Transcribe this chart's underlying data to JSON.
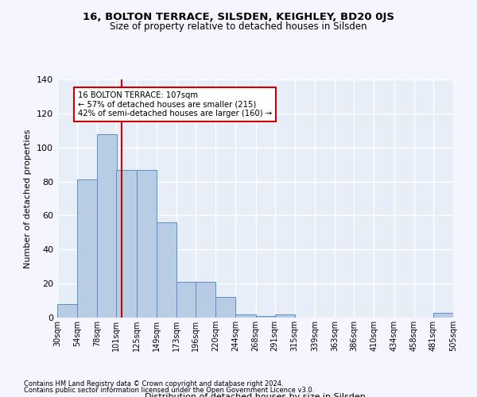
{
  "title": "16, BOLTON TERRACE, SILSDEN, KEIGHLEY, BD20 0JS",
  "subtitle": "Size of property relative to detached houses in Silsden",
  "xlabel": "Distribution of detached houses by size in Silsden",
  "ylabel": "Number of detached properties",
  "bar_color": "#b8cce4",
  "bar_edge_color": "#5b8dc8",
  "background_color": "#e8eef8",
  "grid_color": "#ffffff",
  "vline_x": 107,
  "vline_color": "#cc0000",
  "annotation_text": "16 BOLTON TERRACE: 107sqm\n← 57% of detached houses are smaller (215)\n42% of semi-detached houses are larger (160) →",
  "annotation_box_color": "#ffffff",
  "annotation_border_color": "#cc0000",
  "bins": [
    30,
    54,
    78,
    101,
    125,
    149,
    173,
    196,
    220,
    244,
    268,
    291,
    315,
    339,
    363,
    386,
    410,
    434,
    458,
    481,
    505
  ],
  "bin_labels": [
    "30sqm",
    "54sqm",
    "78sqm",
    "101sqm",
    "125sqm",
    "149sqm",
    "173sqm",
    "196sqm",
    "220sqm",
    "244sqm",
    "268sqm",
    "291sqm",
    "315sqm",
    "339sqm",
    "363sqm",
    "386sqm",
    "410sqm",
    "434sqm",
    "458sqm",
    "481sqm",
    "505sqm"
  ],
  "bar_heights": [
    8,
    81,
    108,
    87,
    87,
    56,
    21,
    21,
    12,
    2,
    1,
    2,
    0,
    0,
    0,
    0,
    0,
    0,
    0,
    3
  ],
  "ylim": [
    0,
    140
  ],
  "yticks": [
    0,
    20,
    40,
    60,
    80,
    100,
    120,
    140
  ],
  "footer1": "Contains HM Land Registry data © Crown copyright and database right 2024.",
  "footer2": "Contains public sector information licensed under the Open Government Licence v3.0."
}
